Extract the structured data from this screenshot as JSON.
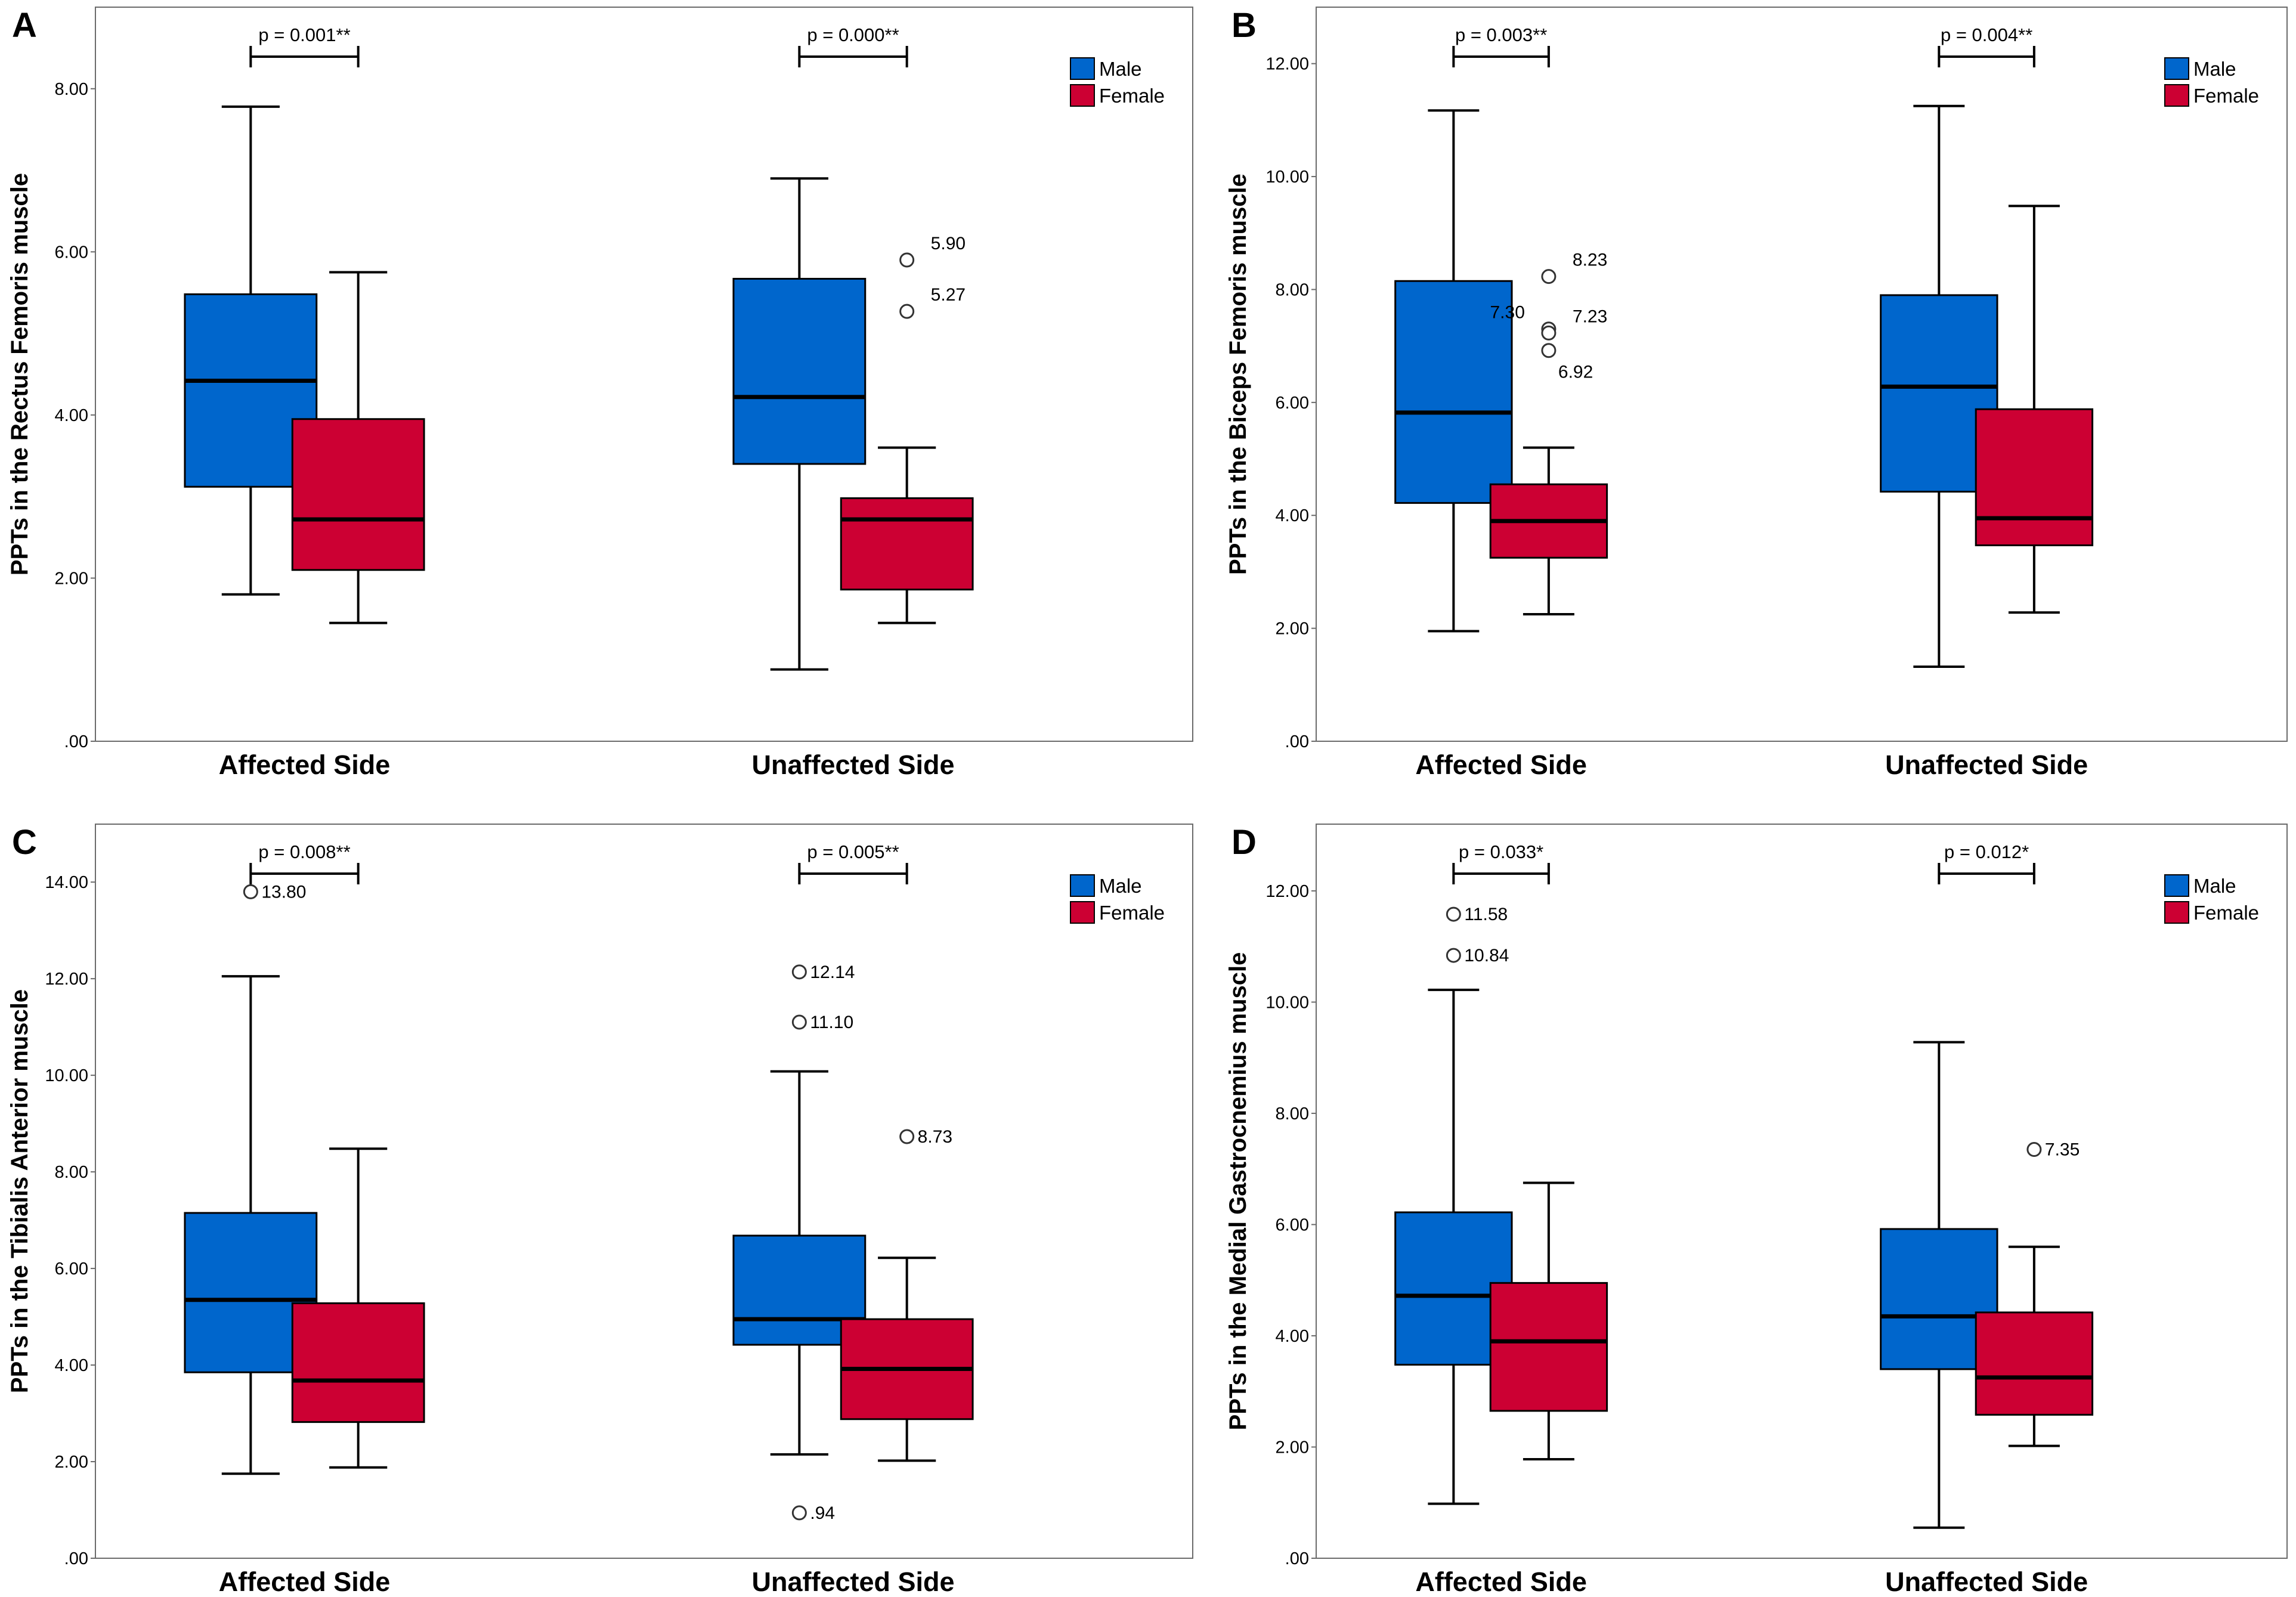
{
  "legend": {
    "items": [
      {
        "label": "Male",
        "color": "#0066CC"
      },
      {
        "label": "Female",
        "color": "#CC0033"
      }
    ]
  },
  "chart_data": [
    {
      "type": "boxplot",
      "panel": "A",
      "ylabel": "PPTs in the Rectus Femoris muscle",
      "ylim": [
        0,
        9
      ],
      "yticks": [
        ".00",
        "2.00",
        "4.00",
        "6.00",
        "8.00"
      ],
      "ytick_values": [
        0,
        2,
        4,
        6,
        8
      ],
      "categories": [
        "Affected Side",
        "Unaffected Side"
      ],
      "pvalues": [
        "p = 0.001**",
        "p = 0.000**"
      ],
      "series": [
        {
          "name": "Male",
          "boxes": [
            {
              "min": 1.8,
              "q1": 3.12,
              "median": 4.42,
              "q3": 5.48,
              "max": 7.78,
              "outliers": []
            },
            {
              "min": 0.88,
              "q1": 3.4,
              "median": 4.22,
              "q3": 5.67,
              "max": 6.9,
              "outliers": []
            }
          ]
        },
        {
          "name": "Female",
          "boxes": [
            {
              "min": 1.45,
              "q1": 2.1,
              "median": 2.72,
              "q3": 3.95,
              "max": 5.75,
              "outliers": []
            },
            {
              "min": 1.45,
              "q1": 1.86,
              "median": 2.72,
              "q3": 2.98,
              "max": 3.6,
              "outliers": [
                {
                  "value": 5.9,
                  "label": "5.90",
                  "side": "right"
                },
                {
                  "value": 5.27,
                  "label": "5.27",
                  "side": "right"
                }
              ]
            }
          ]
        }
      ]
    },
    {
      "type": "boxplot",
      "panel": "B",
      "ylabel": "PPTs in the Biceps Femoris muscle",
      "ylim": [
        0,
        13
      ],
      "yticks": [
        ".00",
        "2.00",
        "4.00",
        "6.00",
        "8.00",
        "10.00",
        "12.00"
      ],
      "ytick_values": [
        0,
        2,
        4,
        6,
        8,
        10,
        12
      ],
      "categories": [
        "Affected Side",
        "Unaffected Side"
      ],
      "pvalues": [
        "p = 0.003**",
        "p = 0.004**"
      ],
      "series": [
        {
          "name": "Male",
          "boxes": [
            {
              "min": 1.95,
              "q1": 4.22,
              "median": 5.82,
              "q3": 8.15,
              "max": 11.17,
              "outliers": []
            },
            {
              "min": 1.32,
              "q1": 4.42,
              "median": 6.28,
              "q3": 7.9,
              "max": 11.25,
              "outliers": []
            }
          ]
        },
        {
          "name": "Female",
          "boxes": [
            {
              "min": 2.25,
              "q1": 3.25,
              "median": 3.9,
              "q3": 4.55,
              "max": 5.2,
              "outliers": [
                {
                  "value": 8.23,
                  "label": "8.23",
                  "side": "right"
                },
                {
                  "value": 7.3,
                  "label": "7.30",
                  "side": "left"
                },
                {
                  "value": 7.23,
                  "label": "7.23",
                  "side": "right"
                },
                {
                  "value": 6.92,
                  "label": "6.92",
                  "side": "right-low"
                }
              ]
            },
            {
              "min": 2.28,
              "q1": 3.47,
              "median": 3.95,
              "q3": 5.88,
              "max": 9.48,
              "outliers": []
            }
          ]
        }
      ]
    },
    {
      "type": "boxplot",
      "panel": "C",
      "ylabel": "PPTs in the Tibialis Anterior muscle",
      "ylim": [
        0,
        15.2
      ],
      "yticks": [
        ".00",
        "2.00",
        "4.00",
        "6.00",
        "8.00",
        "10.00",
        "12.00",
        "14.00"
      ],
      "ytick_values": [
        0,
        2,
        4,
        6,
        8,
        10,
        12,
        14
      ],
      "categories": [
        "Affected Side",
        "Unaffected Side"
      ],
      "pvalues": [
        "p = 0.008**",
        "p = 0.005**"
      ],
      "series": [
        {
          "name": "Male",
          "boxes": [
            {
              "min": 1.75,
              "q1": 3.85,
              "median": 5.35,
              "q3": 7.15,
              "max": 12.05,
              "outliers": [
                {
                  "value": 13.8,
                  "label": "13.80",
                  "side": "right"
                }
              ]
            },
            {
              "min": 2.15,
              "q1": 4.42,
              "median": 4.95,
              "q3": 6.68,
              "max": 10.08,
              "outliers": [
                {
                  "value": 12.14,
                  "label": "12.14",
                  "side": "right"
                },
                {
                  "value": 11.1,
                  "label": "11.10",
                  "side": "right"
                },
                {
                  "value": 0.94,
                  "label": ".94",
                  "side": "right"
                }
              ]
            }
          ]
        },
        {
          "name": "Female",
          "boxes": [
            {
              "min": 1.88,
              "q1": 2.82,
              "median": 3.68,
              "q3": 5.28,
              "max": 8.48,
              "outliers": []
            },
            {
              "min": 2.02,
              "q1": 2.88,
              "median": 3.92,
              "q3": 4.95,
              "max": 6.22,
              "outliers": [
                {
                  "value": 8.73,
                  "label": "8.73",
                  "side": "right"
                }
              ]
            }
          ]
        }
      ]
    },
    {
      "type": "boxplot",
      "panel": "D",
      "ylabel": "PPTs in the Medial Gastrocnemius muscle",
      "ylim": [
        0,
        13.2
      ],
      "yticks": [
        ".00",
        "2.00",
        "4.00",
        "6.00",
        "8.00",
        "10.00",
        "12.00"
      ],
      "ytick_values": [
        0,
        2,
        4,
        6,
        8,
        10,
        12
      ],
      "categories": [
        "Affected Side",
        "Unaffected Side"
      ],
      "pvalues": [
        "p = 0.033*",
        "p = 0.012*"
      ],
      "series": [
        {
          "name": "Male",
          "boxes": [
            {
              "min": 0.98,
              "q1": 3.48,
              "median": 4.72,
              "q3": 6.22,
              "max": 10.22,
              "outliers": [
                {
                  "value": 11.58,
                  "label": "11.58",
                  "side": "right"
                },
                {
                  "value": 10.84,
                  "label": "10.84",
                  "side": "right"
                }
              ]
            },
            {
              "min": 0.55,
              "q1": 3.4,
              "median": 4.35,
              "q3": 5.92,
              "max": 9.28,
              "outliers": []
            }
          ]
        },
        {
          "name": "Female",
          "boxes": [
            {
              "min": 1.78,
              "q1": 2.65,
              "median": 3.9,
              "q3": 4.95,
              "max": 6.75,
              "outliers": []
            },
            {
              "min": 2.02,
              "q1": 2.58,
              "median": 3.25,
              "q3": 4.42,
              "max": 5.6,
              "outliers": [
                {
                  "value": 7.35,
                  "label": "7.35",
                  "side": "right"
                }
              ]
            }
          ]
        }
      ]
    }
  ]
}
